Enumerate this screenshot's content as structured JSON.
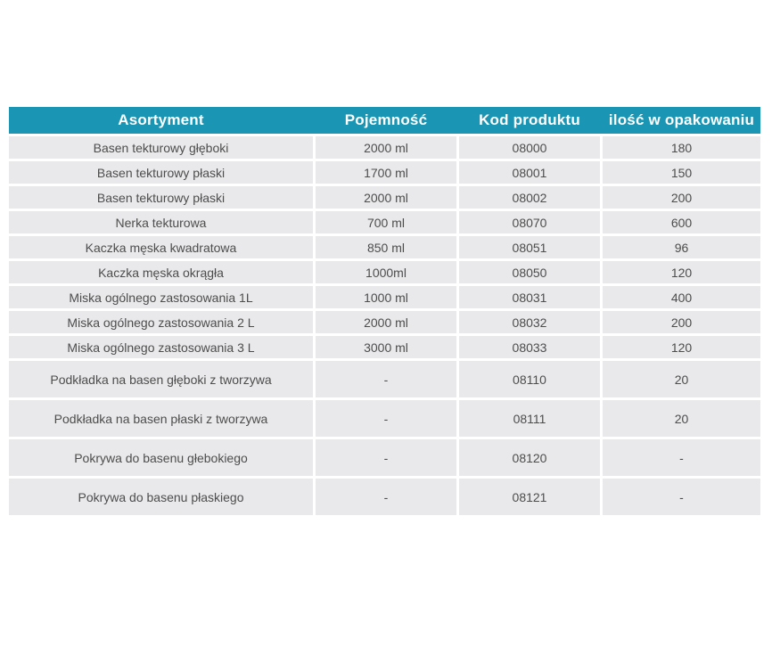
{
  "colors": {
    "header_bg": "#1a96b4",
    "header_text": "#ffffff",
    "row_bg": "#e9e9eb",
    "row_text": "#4d4d4d",
    "page_bg": "#ffffff"
  },
  "table": {
    "columns": [
      "Asortyment",
      "Pojemność",
      "Kod produktu",
      "ilość w opakowaniu"
    ],
    "rows": [
      {
        "tall": false,
        "cells": [
          "Basen tekturowy głęboki",
          "2000 ml",
          "08000",
          "180"
        ]
      },
      {
        "tall": false,
        "cells": [
          "Basen tekturowy płaski",
          "1700 ml",
          "08001",
          "150"
        ]
      },
      {
        "tall": false,
        "cells": [
          "Basen tekturowy płaski",
          "2000 ml",
          "08002",
          "200"
        ]
      },
      {
        "tall": false,
        "cells": [
          "Nerka tekturowa",
          "700 ml",
          "08070",
          "600"
        ]
      },
      {
        "tall": false,
        "cells": [
          "Kaczka męska kwadratowa",
          "850 ml",
          "08051",
          "96"
        ]
      },
      {
        "tall": false,
        "cells": [
          "Kaczka męska okrągła",
          "1000ml",
          "08050",
          "120"
        ]
      },
      {
        "tall": false,
        "cells": [
          "Miska ogólnego zastosowania 1L",
          "1000 ml",
          "08031",
          "400"
        ]
      },
      {
        "tall": false,
        "cells": [
          "Miska ogólnego zastosowania 2 L",
          "2000 ml",
          "08032",
          "200"
        ]
      },
      {
        "tall": false,
        "cells": [
          "Miska ogólnego zastosowania 3 L",
          "3000 ml",
          "08033",
          "120"
        ]
      },
      {
        "tall": true,
        "cells": [
          "Podkładka na basen  głęboki  z tworzywa",
          "-",
          "08110",
          "20"
        ]
      },
      {
        "tall": true,
        "cells": [
          "Podkładka na basen  płaski  z tworzywa",
          "-",
          "08111",
          "20"
        ]
      },
      {
        "tall": true,
        "cells": [
          "Pokrywa do basenu głebokiego",
          "-",
          "08120",
          "-"
        ]
      },
      {
        "tall": true,
        "cells": [
          "Pokrywa do basenu płaskiego",
          "-",
          "08121",
          "-"
        ]
      }
    ]
  }
}
